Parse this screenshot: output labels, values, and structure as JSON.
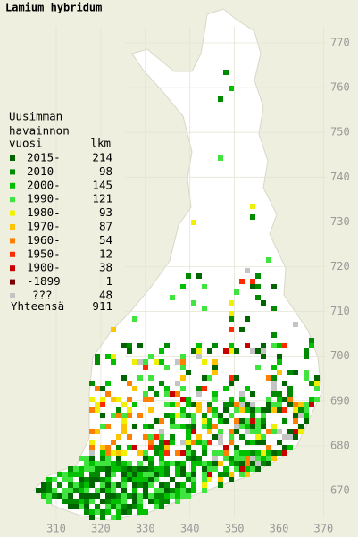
{
  "title": "Lamium hybridum",
  "legend": {
    "header": [
      "Uusimman",
      "havainnon"
    ],
    "year_heading": "vuosi",
    "count_heading": "lkm",
    "entries": [
      {
        "label": "2015-",
        "count": 214,
        "color": "#006400"
      },
      {
        "label": "2010-",
        "count": 98,
        "color": "#008a00"
      },
      {
        "label": "2000-",
        "count": 145,
        "color": "#00c000"
      },
      {
        "label": "1990-",
        "count": 121,
        "color": "#3fe43f"
      },
      {
        "label": "1980-",
        "count": 93,
        "color": "#f0f000"
      },
      {
        "label": "1970-",
        "count": 87,
        "color": "#ffc400"
      },
      {
        "label": "1960-",
        "count": 54,
        "color": "#ff8000"
      },
      {
        "label": "1950-",
        "count": 12,
        "color": "#ff2a00"
      },
      {
        "label": "1900-",
        "count": 38,
        "color": "#c80000"
      },
      {
        "label": "-1899",
        "count": 1,
        "color": "#7a0000"
      },
      {
        "label": "???",
        "count": 48,
        "color": "#c4c4c4"
      }
    ],
    "total_label": "Yhteensä",
    "total": 911
  },
  "grid_labels": {
    "easting": [
      "310",
      "320",
      "330",
      "340",
      "350",
      "360",
      "370"
    ],
    "northing": [
      "770",
      "760",
      "750",
      "740",
      "730",
      "720",
      "710",
      "700",
      "690",
      "680",
      "670"
    ]
  }
}
